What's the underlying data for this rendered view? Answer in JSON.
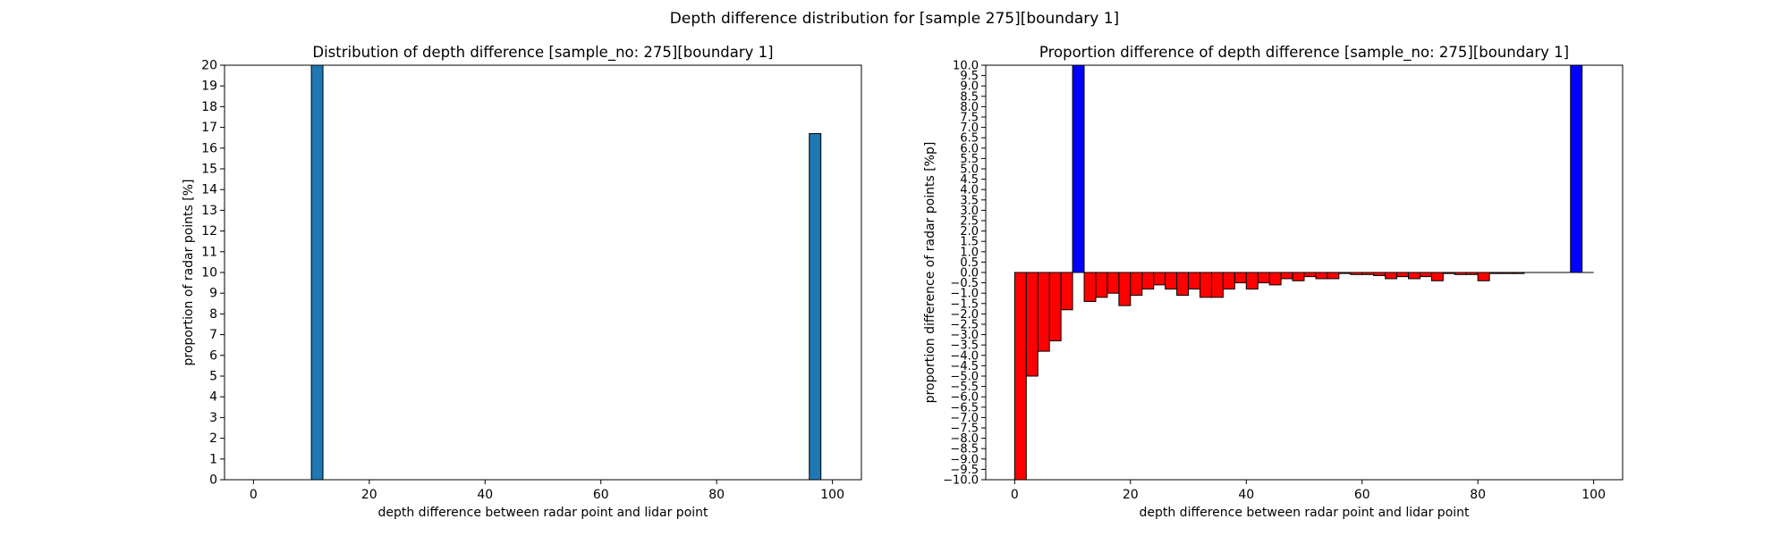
{
  "figure": {
    "suptitle": "Depth difference distribution for [sample 275][boundary 1]"
  },
  "chart_data": [
    {
      "type": "bar",
      "title": "Distribution of depth difference [sample_no: 275][boundary 1]",
      "xlabel": "depth difference between radar point and lidar point",
      "ylabel": "proportion of radar points [%]",
      "xlim": [
        -5,
        105
      ],
      "ylim": [
        0,
        20
      ],
      "xticks": [
        0,
        20,
        40,
        60,
        80,
        100
      ],
      "yticks": [
        0,
        1,
        2,
        3,
        4,
        5,
        6,
        7,
        8,
        9,
        10,
        11,
        12,
        13,
        14,
        15,
        16,
        17,
        18,
        19,
        20
      ],
      "bar_width": 2,
      "x": [
        11,
        97
      ],
      "values": [
        20,
        16.7
      ],
      "colors": {
        "bar": "#1f77b4",
        "edge": "#000000"
      }
    },
    {
      "type": "bar",
      "title": "Proportion difference of depth difference [sample_no: 275][boundary 1]",
      "xlabel": "depth difference between radar point and lidar point",
      "ylabel": "proportion difference of radar points [%p]",
      "xlim": [
        -5,
        105
      ],
      "ylim": [
        -10,
        10
      ],
      "xticks": [
        0,
        20,
        40,
        60,
        80,
        100
      ],
      "yticks": [
        -10.0,
        -9.5,
        -9.0,
        -8.5,
        -8.0,
        -7.5,
        -7.0,
        -6.5,
        -6.0,
        -5.5,
        -5.0,
        -4.5,
        -4.0,
        -3.5,
        -3.0,
        -2.5,
        -2.0,
        -1.5,
        -1.0,
        -0.5,
        0.0,
        0.5,
        1.0,
        1.5,
        2.0,
        2.5,
        3.0,
        3.5,
        4.0,
        4.5,
        5.0,
        5.5,
        6.0,
        6.5,
        7.0,
        7.5,
        8.0,
        8.5,
        9.0,
        9.5,
        10.0
      ],
      "bar_width": 2,
      "x": [
        1,
        3,
        5,
        7,
        9,
        11,
        13,
        15,
        17,
        19,
        21,
        23,
        25,
        27,
        29,
        31,
        33,
        35,
        37,
        39,
        41,
        43,
        45,
        47,
        49,
        51,
        53,
        55,
        57,
        59,
        61,
        63,
        65,
        67,
        69,
        71,
        73,
        75,
        77,
        79,
        81,
        83,
        85,
        87,
        89,
        91,
        93,
        95,
        97,
        99
      ],
      "values": [
        -10,
        -5.0,
        -3.8,
        -3.3,
        -1.8,
        10,
        -1.4,
        -1.2,
        -1.0,
        -1.6,
        -1.1,
        -0.8,
        -0.6,
        -0.8,
        -1.1,
        -0.8,
        -1.2,
        -1.2,
        -0.8,
        -0.5,
        -0.8,
        -0.5,
        -0.6,
        -0.3,
        -0.4,
        -0.2,
        -0.3,
        -0.3,
        -0.05,
        -0.1,
        -0.1,
        -0.15,
        -0.3,
        -0.2,
        -0.3,
        -0.2,
        -0.4,
        -0.05,
        -0.1,
        -0.1,
        -0.4,
        -0.05,
        -0.05,
        -0.05,
        0,
        0,
        0,
        0,
        10,
        0
      ],
      "colors": {
        "positive": "#0000ff",
        "negative": "#ff0000",
        "edge": "#000000"
      }
    }
  ]
}
